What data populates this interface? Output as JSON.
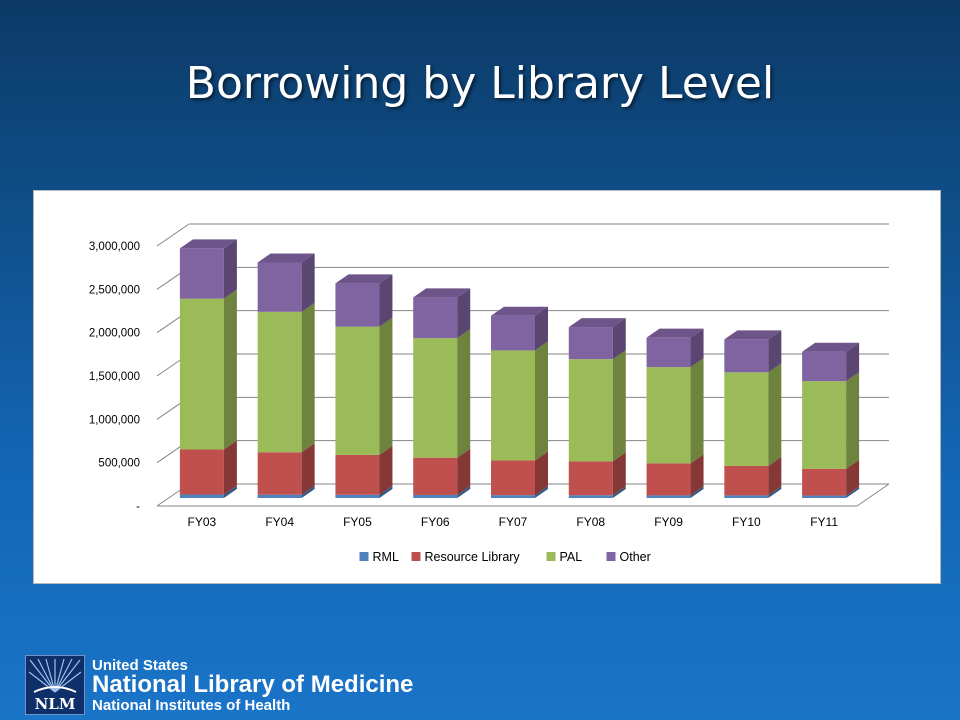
{
  "slide": {
    "title": "Borrowing by Library Level"
  },
  "logo": {
    "line1": "United States",
    "line2": "National Library of Medicine",
    "line3": "National Institutes of Health",
    "mark": "NLM"
  },
  "chart_data": {
    "type": "bar",
    "stacked": true,
    "three_d": true,
    "categories": [
      "FY03",
      "FY04",
      "FY05",
      "FY06",
      "FY07",
      "FY08",
      "FY09",
      "FY10",
      "FY11"
    ],
    "series": [
      {
        "name": "RML",
        "color": "#4f81bd",
        "values": [
          40000,
          38000,
          37000,
          35000,
          33000,
          32000,
          30000,
          30000,
          28000
        ]
      },
      {
        "name": "Resource Library",
        "color": "#c0504d",
        "values": [
          520000,
          490000,
          460000,
          430000,
          400000,
          390000,
          370000,
          340000,
          310000
        ]
      },
      {
        "name": "PAL",
        "color": "#9bbb59",
        "values": [
          1740000,
          1620000,
          1480000,
          1380000,
          1270000,
          1180000,
          1110000,
          1080000,
          1010000
        ]
      },
      {
        "name": "Other",
        "color": "#8064a2",
        "values": [
          580000,
          570000,
          500000,
          470000,
          400000,
          370000,
          340000,
          380000,
          340000
        ]
      }
    ],
    "y_ticks": [
      "-",
      "500,000",
      "1,000,000",
      "1,500,000",
      "2,000,000",
      "2,500,000",
      "3,000,000"
    ],
    "ylim": [
      0,
      3000000
    ],
    "grid": true,
    "legend_position": "bottom"
  }
}
